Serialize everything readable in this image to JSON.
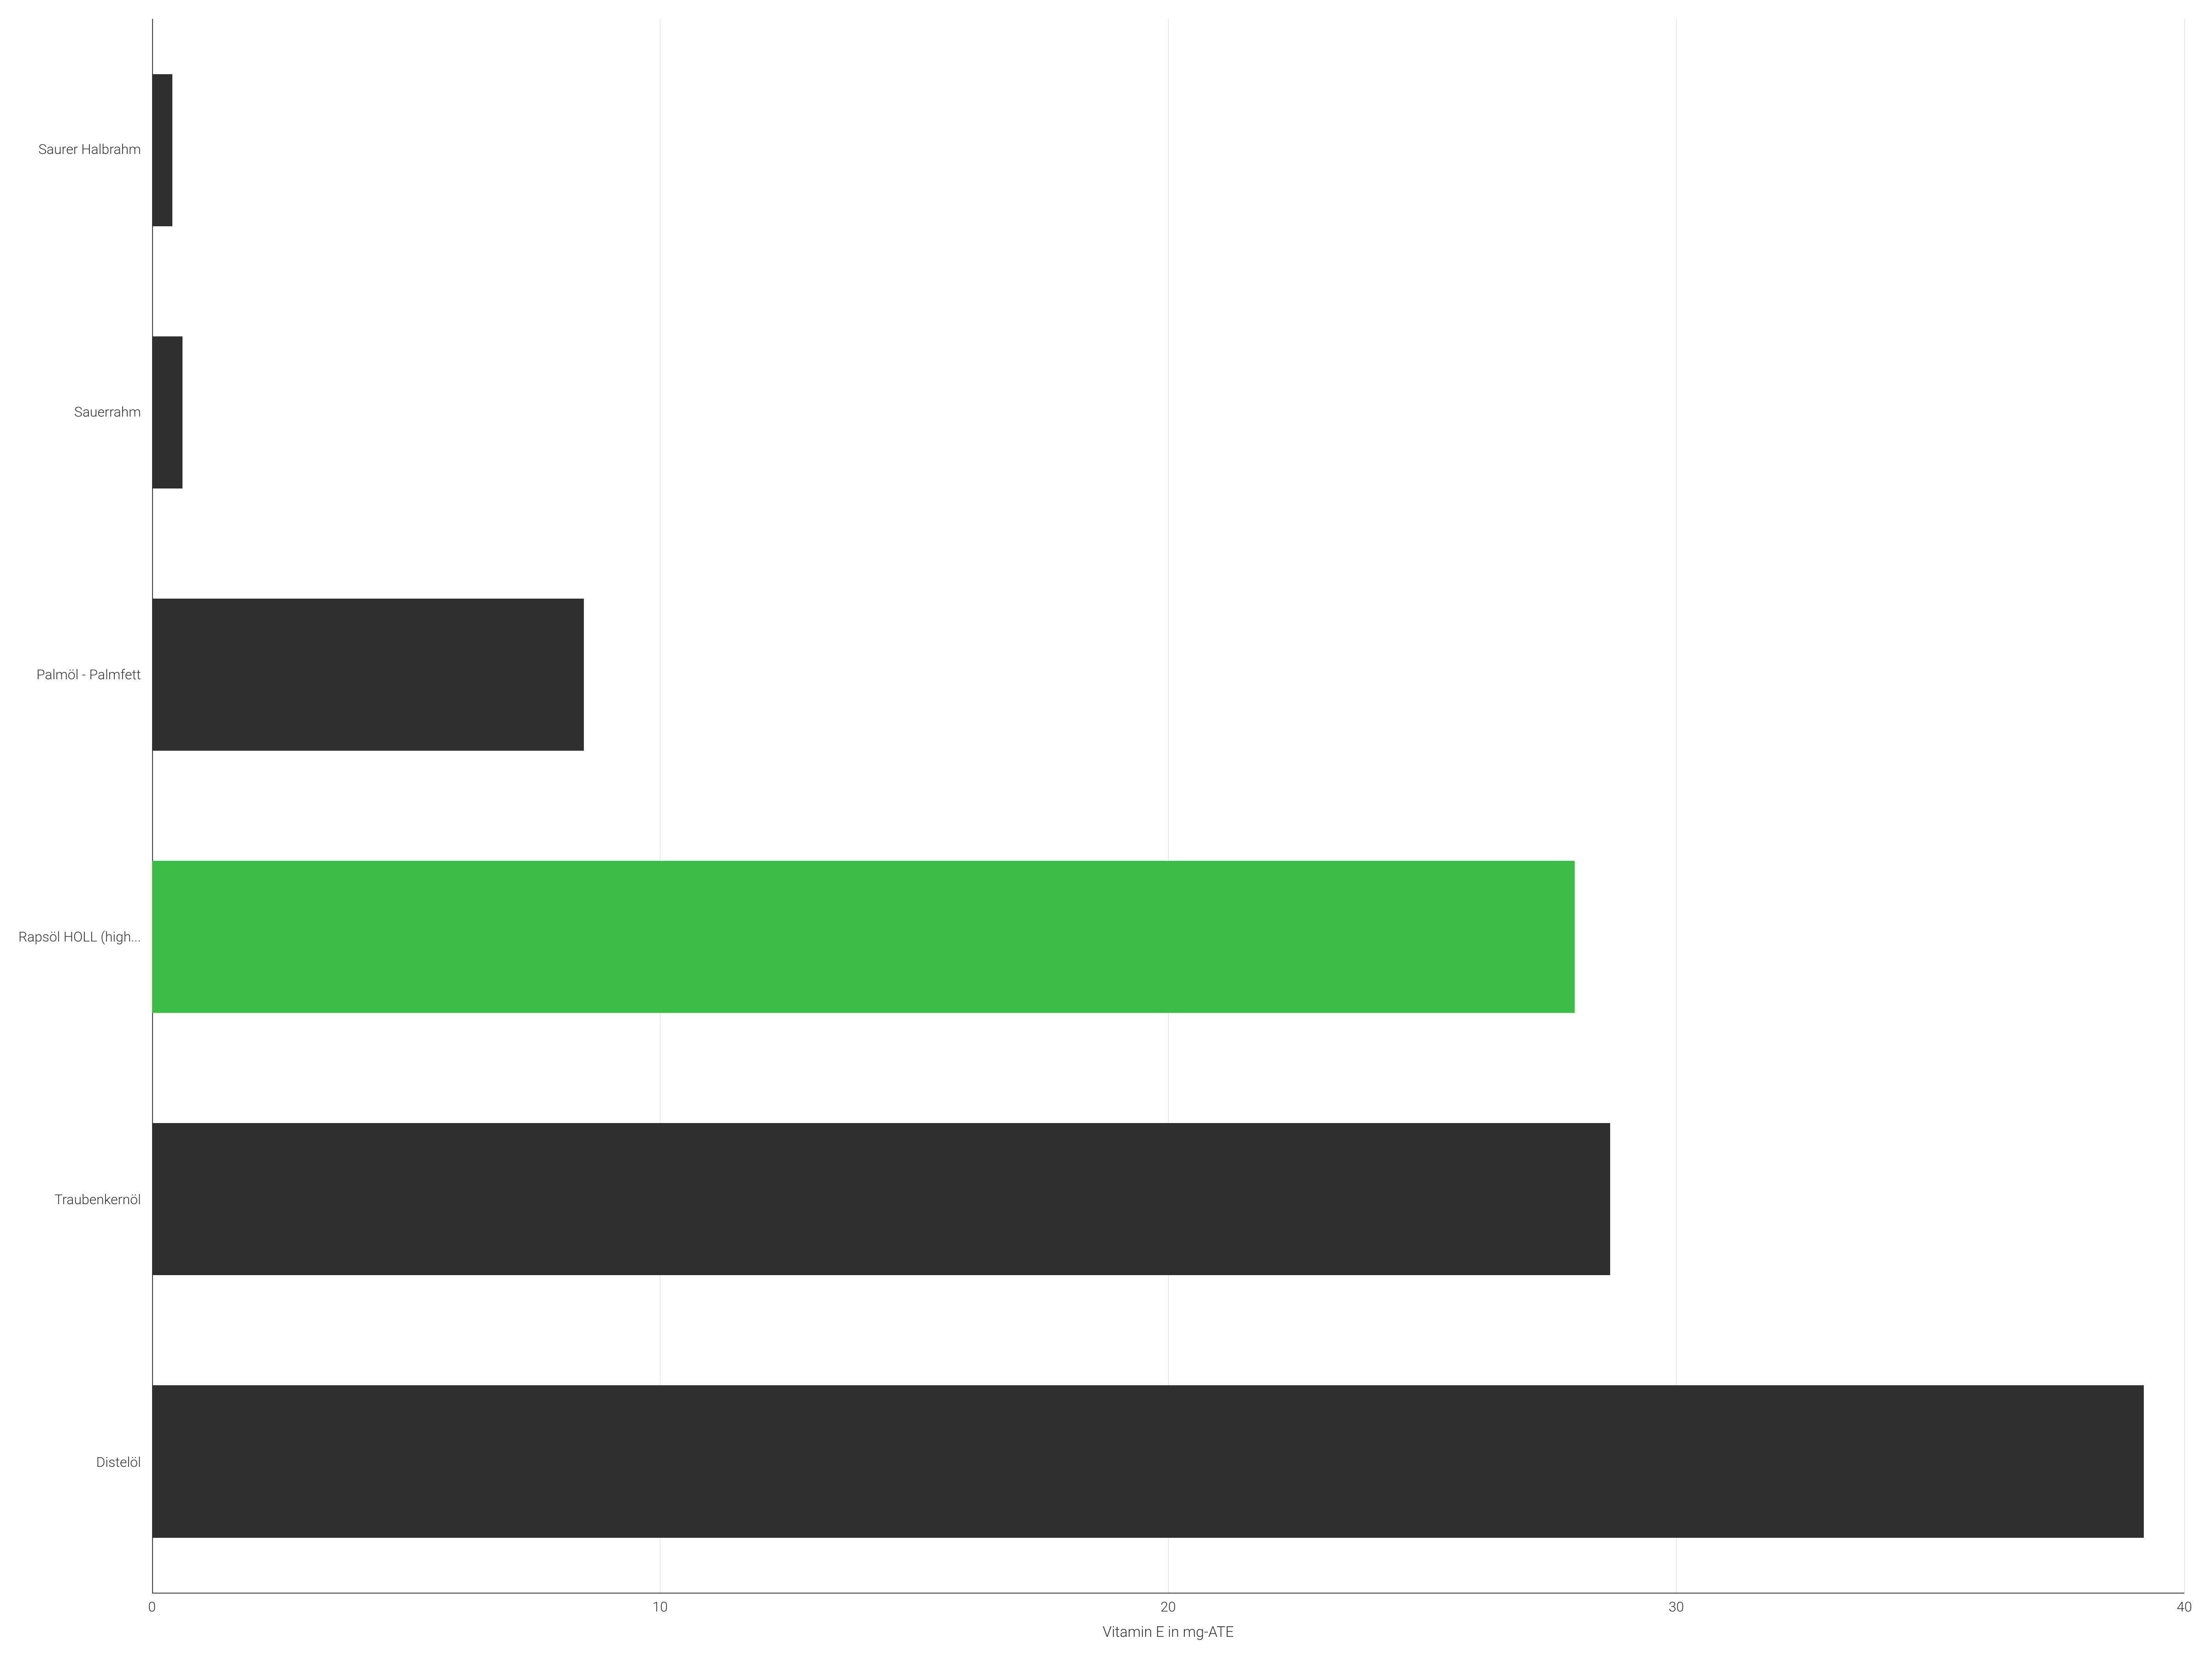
{
  "chart": {
    "type": "bar-horizontal",
    "xlabel": "Vitamin E in mg-ATE",
    "xlim": [
      0,
      40
    ],
    "xtick_step": 10,
    "xticks": [
      0,
      10,
      20,
      30,
      40
    ],
    "categories": [
      "Saurer Halbrahm",
      "Sauerrahm",
      "Palmöl - Palmfett",
      "Rapsöl HOLL (high...",
      "Traubenkernöl",
      "Distelöl"
    ],
    "values": [
      0.4,
      0.6,
      8.5,
      28.0,
      28.7,
      39.2
    ],
    "bar_colors": [
      "#2f2f2f",
      "#2f2f2f",
      "#2f2f2f",
      "#3ebd46",
      "#2f2f2f",
      "#2f2f2f"
    ],
    "highlight_index": 3,
    "highlight_color": "#3ebd46",
    "default_bar_color": "#2f2f2f",
    "background_color": "#ffffff",
    "grid_color": "#d9d9d9",
    "grid_line_width": 1,
    "axis_line_color": "#444444",
    "axis_line_width": 2,
    "y_label_fontsize": 30,
    "x_tick_fontsize": 30,
    "x_title_fontsize": 32,
    "font_weight": "300",
    "bar_width_ratio": 0.58
  }
}
